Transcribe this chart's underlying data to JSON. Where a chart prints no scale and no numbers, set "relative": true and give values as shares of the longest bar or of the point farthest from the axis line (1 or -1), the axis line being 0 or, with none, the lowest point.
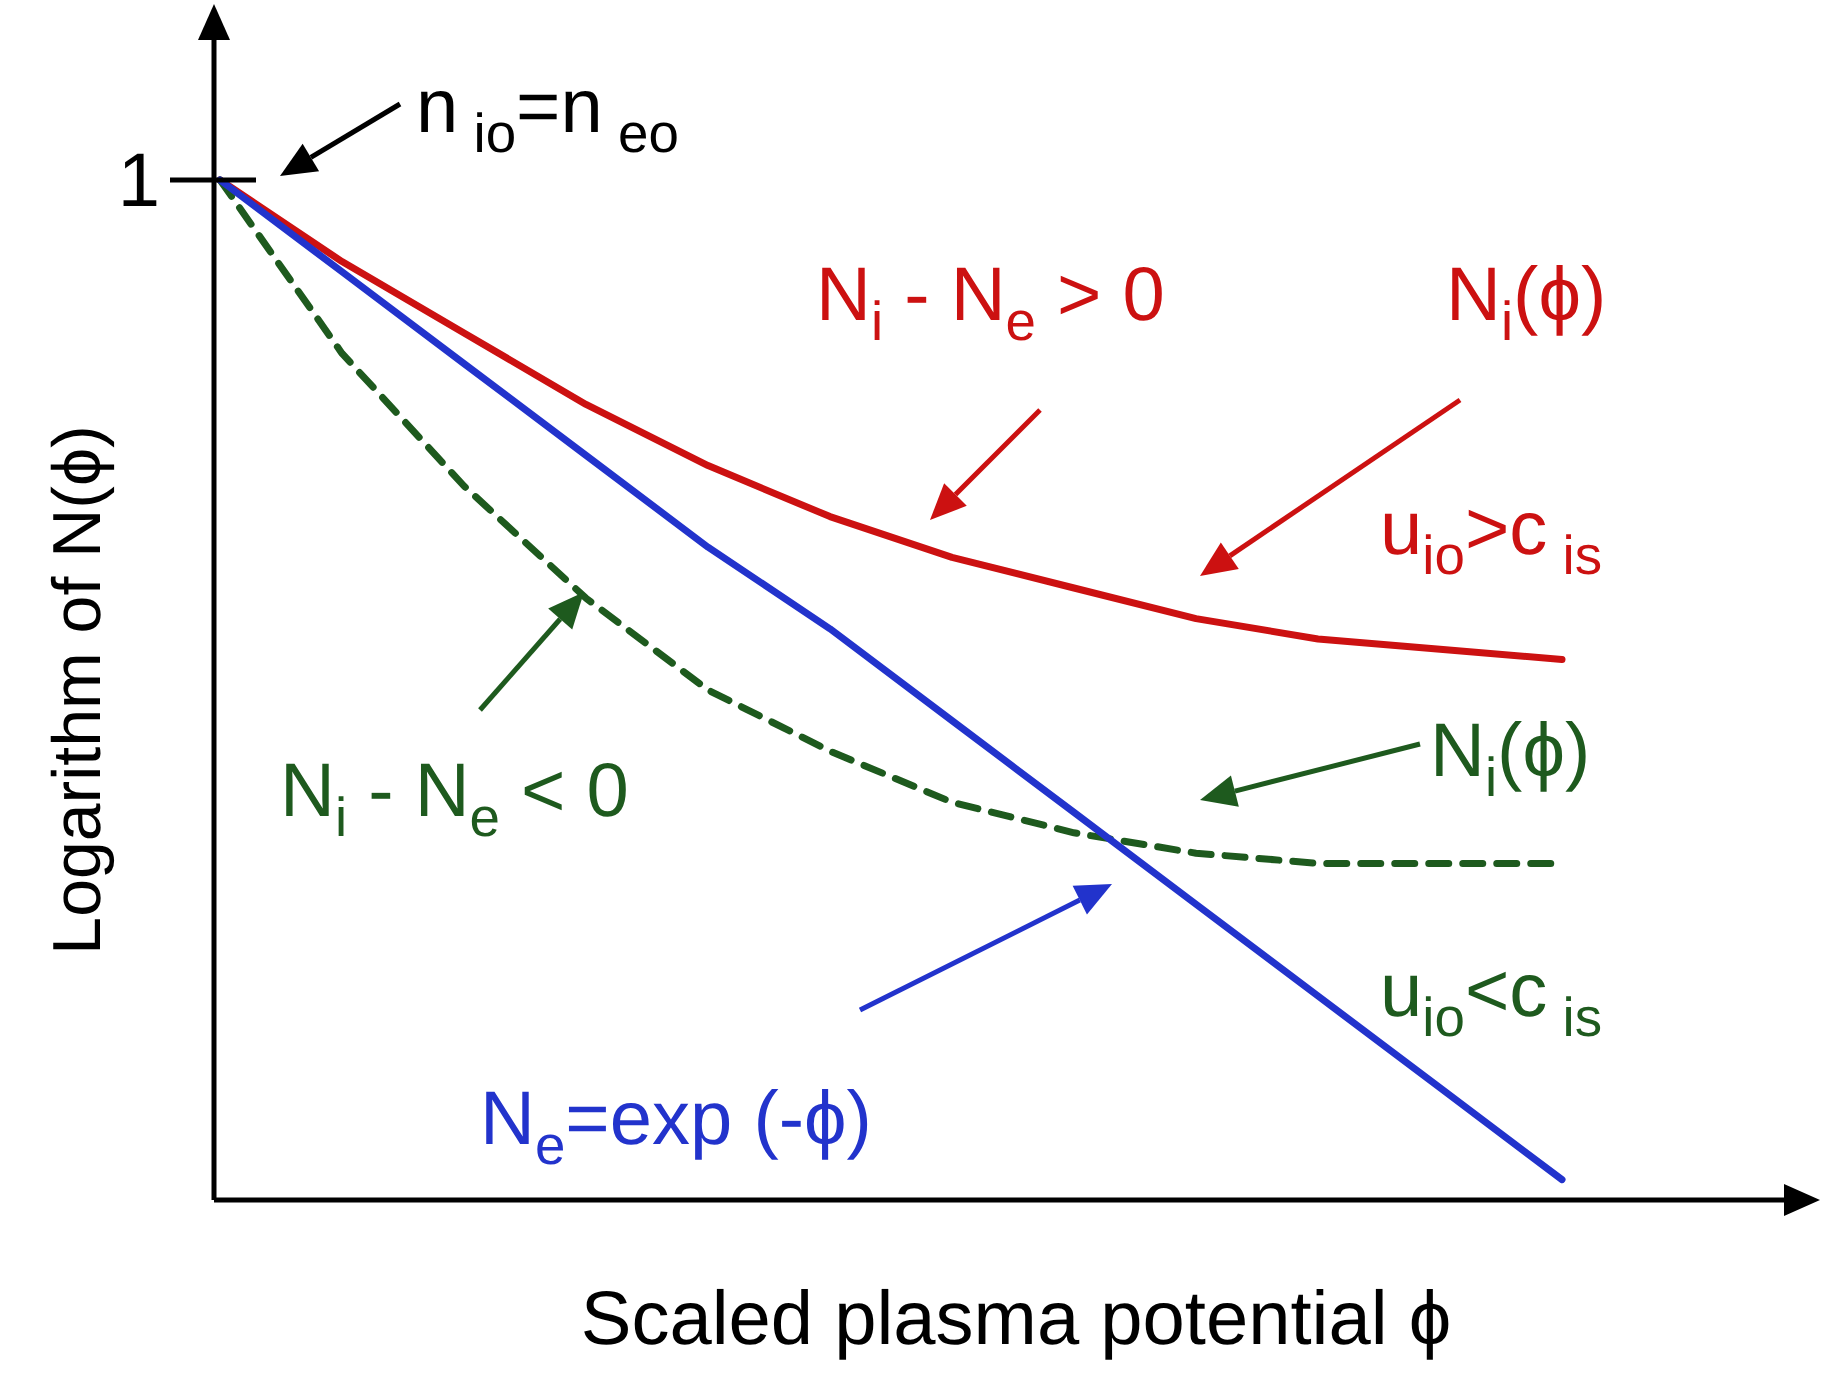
{
  "chart_data": {
    "type": "line",
    "relative": true,
    "xlabel": "Scaled plasma potential ϕ",
    "ylabel": "Logarithm of  N(ϕ)",
    "categories": [
      null,
      null,
      null,
      null,
      null,
      null,
      null,
      null,
      null,
      null,
      null,
      null
    ],
    "series": [
      {
        "name": "N$_{i}$(ϕ)",
        "color": "#cc1111",
        "line_style": "solid",
        "values": [
          1,
          0.92,
          0.85,
          0.78,
          0.72,
          0.67,
          0.63,
          0.6,
          0.57,
          0.55,
          0.54,
          0.53
        ]
      },
      {
        "name": "N$_{i}$(ϕ)",
        "color": "#1e5a1e",
        "line_style": "dashed",
        "values": [
          1,
          0.83,
          0.7,
          0.59,
          0.5,
          0.44,
          0.39,
          0.36,
          0.34,
          0.33,
          0.33,
          0.33
        ]
      },
      {
        "name": "N$_{e}$=exp (-ϕ)",
        "color": "#2233cc",
        "line_style": "solid",
        "values": [
          1,
          0.91,
          0.82,
          0.73,
          0.64,
          0.56,
          0.47,
          0.38,
          0.29,
          0.2,
          0.11,
          0.02
        ]
      }
    ],
    "annotations": [
      "1",
      "n$_{ io}$=n$_{ eo}$",
      "N$_{i}$ - N$_{e}$ > 0",
      "u$_{io}$>c$_{ is}$",
      "N$_{i}$ - N$_{e}$ < 0",
      "u$_{io}$<c$_{ is}$"
    ]
  }
}
